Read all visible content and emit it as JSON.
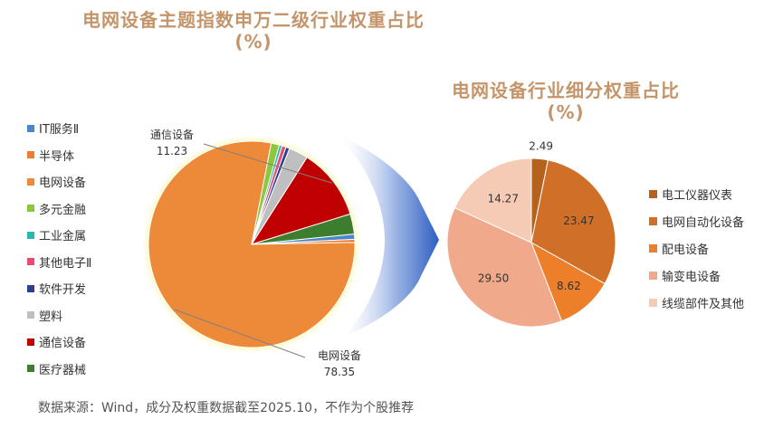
{
  "left_title_line1": "电网设备主题指数申万二级行业权重占比",
  "left_title_line2": "(%)",
  "right_title_line1": "电网设备行业细分权重占比",
  "right_title_line2": "(%)",
  "source": "数据来源：Wind，成分及权重数据截至2025.10，不作为个股推荐",
  "chart_data": [
    {
      "type": "pie",
      "title": "电网设备主题指数申万二级行业权重占比 (%)",
      "legend_position": "left",
      "categories": [
        "IT服务Ⅱ",
        "半导体",
        "电网设备",
        "多元金融",
        "工业金属",
        "其他电子Ⅱ",
        "软件开发",
        "塑料",
        "通信设备",
        "医疗器械"
      ],
      "values": [
        0.82,
        0.48,
        78.35,
        1.28,
        0.44,
        0.64,
        0.59,
        3.02,
        11.23,
        3.15
      ],
      "colors": [
        "#4a86c8",
        "#ed7d31",
        "#ed8a3a",
        "#8dc63f",
        "#26b9b3",
        "#ea4b6e",
        "#2e3f8f",
        "#bfbfbf",
        "#c00000",
        "#3c7d2e"
      ],
      "data_labels": [
        {
          "name": "通信设备",
          "value": "11.23"
        },
        {
          "name": "电网设备",
          "value": "78.35"
        }
      ]
    },
    {
      "type": "pie",
      "title": "电网设备行业细分权重占比 (%)",
      "legend_position": "right",
      "categories": [
        "电工仪器仪表",
        "电网自动化设备",
        "配电设备",
        "输变电设备",
        "线缆部件及其他"
      ],
      "values": [
        2.49,
        23.47,
        8.62,
        29.5,
        14.27
      ],
      "value_labels": [
        "2.49",
        "23.47",
        "8.62",
        "29.50",
        "14.27"
      ],
      "colors": [
        "#b5621e",
        "#d06f28",
        "#ee7f2a",
        "#f0a98a",
        "#f6cbb6"
      ]
    }
  ]
}
